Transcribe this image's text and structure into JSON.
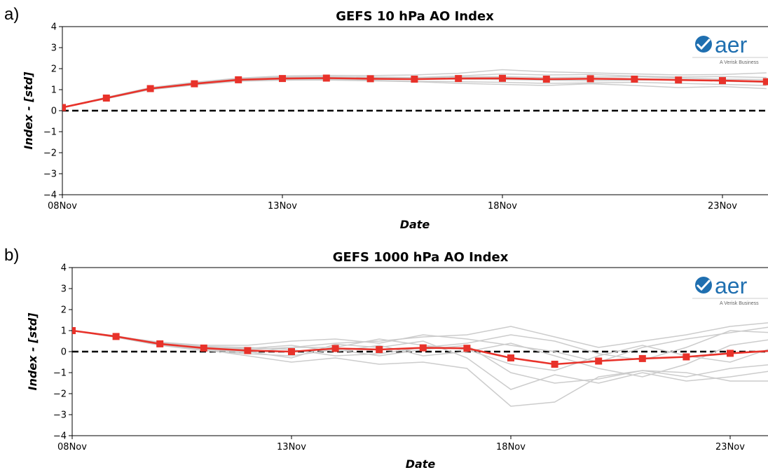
{
  "chart_data": [
    {
      "type": "line",
      "panel_label": "a)",
      "title": "GEFS 10 hPa AO Index",
      "xlabel": "Date",
      "ylabel": "Index - [std]",
      "x_range_days": [
        0,
        16.6
      ],
      "ylim": [
        -4,
        4
      ],
      "yticks": [
        -4,
        -3,
        -2,
        -1,
        0,
        1,
        2,
        3,
        4
      ],
      "ytick_labels": [
        "−4",
        "−3",
        "−2",
        "−1",
        "0",
        "1",
        "2",
        "3",
        "4"
      ],
      "xticks": [
        "08Nov",
        "13Nov",
        "18Nov",
        "23Nov"
      ],
      "zero_line": true,
      "series": [
        {
          "role": "ensemble_mean",
          "color": "#e8322a",
          "marker": "square",
          "x": [
            "08Nov",
            "09Nov",
            "10Nov",
            "11Nov",
            "12Nov",
            "13Nov",
            "14Nov",
            "15Nov",
            "16Nov",
            "17Nov",
            "18Nov",
            "19Nov",
            "20Nov",
            "21Nov",
            "22Nov",
            "23Nov",
            "24Nov"
          ],
          "values": [
            0.15,
            0.6,
            1.05,
            1.28,
            1.47,
            1.53,
            1.55,
            1.52,
            1.5,
            1.53,
            1.54,
            1.5,
            1.52,
            1.5,
            1.46,
            1.43,
            1.38
          ]
        },
        {
          "role": "ensemble_members",
          "color": "#cccccc",
          "members": [
            [
              0.15,
              0.62,
              1.08,
              1.32,
              1.52,
              1.6,
              1.62,
              1.6,
              1.58,
              1.65,
              1.75,
              1.7,
              1.72,
              1.65,
              1.6,
              1.62,
              1.58
            ],
            [
              0.15,
              0.58,
              1.02,
              1.25,
              1.43,
              1.48,
              1.5,
              1.45,
              1.4,
              1.38,
              1.35,
              1.3,
              1.32,
              1.35,
              1.3,
              1.25,
              1.2
            ],
            [
              0.15,
              0.64,
              1.1,
              1.35,
              1.55,
              1.65,
              1.68,
              1.67,
              1.7,
              1.78,
              1.95,
              1.85,
              1.8,
              1.75,
              1.7,
              1.72,
              1.8
            ],
            [
              0.15,
              0.57,
              1.0,
              1.22,
              1.4,
              1.45,
              1.46,
              1.42,
              1.38,
              1.3,
              1.25,
              1.2,
              1.28,
              1.2,
              1.1,
              1.15,
              1.05
            ],
            [
              0.15,
              0.61,
              1.06,
              1.3,
              1.5,
              1.56,
              1.6,
              1.58,
              1.55,
              1.6,
              1.62,
              1.58,
              1.6,
              1.62,
              1.55,
              1.5,
              1.48
            ],
            [
              0.15,
              0.59,
              1.04,
              1.26,
              1.45,
              1.5,
              1.52,
              1.5,
              1.52,
              1.5,
              1.48,
              1.45,
              1.42,
              1.45,
              1.48,
              1.4,
              1.35
            ]
          ]
        }
      ]
    },
    {
      "type": "line",
      "panel_label": "b)",
      "title": "GEFS 1000 hPa AO Index",
      "xlabel": "Date",
      "ylabel": "Index - [std]",
      "x_range_days": [
        0,
        16.6
      ],
      "ylim": [
        -4,
        4
      ],
      "yticks": [
        -4,
        -3,
        -2,
        -1,
        0,
        1,
        2,
        3,
        4
      ],
      "ytick_labels": [
        "−4",
        "−3",
        "−2",
        "−1",
        "0",
        "1",
        "2",
        "3",
        "4"
      ],
      "xticks": [
        "08Nov",
        "13Nov",
        "18Nov",
        "23Nov"
      ],
      "zero_line": true,
      "series": [
        {
          "role": "ensemble_mean",
          "color": "#e8322a",
          "marker": "square",
          "x": [
            "08Nov",
            "09Nov",
            "10Nov",
            "11Nov",
            "12Nov",
            "13Nov",
            "14Nov",
            "15Nov",
            "16Nov",
            "17Nov",
            "18Nov",
            "19Nov",
            "20Nov",
            "21Nov",
            "22Nov",
            "23Nov",
            "24Nov"
          ],
          "values": [
            1.0,
            0.72,
            0.37,
            0.17,
            0.05,
            0.0,
            0.15,
            0.1,
            0.18,
            0.16,
            -0.3,
            -0.6,
            -0.45,
            -0.33,
            -0.25,
            -0.08,
            0.05
          ]
        },
        {
          "role": "ensemble_members",
          "color": "#cccccc",
          "members": [
            [
              1.0,
              0.75,
              0.4,
              0.2,
              0.1,
              0.2,
              0.4,
              0.5,
              0.7,
              0.8,
              1.2,
              0.7,
              0.2,
              0.5,
              0.8,
              1.2,
              1.4
            ],
            [
              1.0,
              0.7,
              0.3,
              0.1,
              -0.2,
              -0.5,
              -0.3,
              -0.6,
              -0.5,
              -0.8,
              -2.6,
              -2.4,
              -1.2,
              -0.9,
              -1.0,
              -1.4,
              -1.4
            ],
            [
              1.0,
              0.72,
              0.45,
              0.3,
              0.3,
              0.5,
              0.6,
              0.4,
              0.8,
              0.6,
              0.3,
              0.0,
              -0.5,
              0.2,
              0.6,
              0.9,
              1.2
            ],
            [
              1.0,
              0.68,
              0.3,
              0.05,
              -0.1,
              -0.2,
              0.1,
              -0.2,
              0.1,
              0.3,
              -1.0,
              -1.5,
              -1.3,
              -0.9,
              -1.2,
              -0.8,
              -0.6
            ],
            [
              1.0,
              0.74,
              0.35,
              0.2,
              0.15,
              0.3,
              0.0,
              0.3,
              -0.2,
              0.0,
              0.4,
              -0.2,
              -0.8,
              -1.2,
              -0.6,
              0.3,
              0.6
            ],
            [
              1.0,
              0.7,
              0.38,
              0.1,
              0.0,
              -0.3,
              0.35,
              0.2,
              0.5,
              -0.3,
              -1.8,
              -1.1,
              -1.5,
              -1.0,
              -1.4,
              -1.2,
              -0.9
            ],
            [
              1.0,
              0.73,
              0.42,
              0.25,
              0.2,
              0.1,
              -0.2,
              -0.1,
              0.2,
              0.4,
              0.8,
              0.5,
              -0.1,
              -0.4,
              0.2,
              1.0,
              0.9
            ],
            [
              1.0,
              0.71,
              0.33,
              0.12,
              -0.05,
              0.2,
              0.2,
              0.6,
              0.3,
              0.1,
              -0.6,
              -0.9,
              -0.2,
              0.3,
              -0.2,
              -0.5,
              0.2
            ]
          ]
        }
      ]
    }
  ],
  "logo": {
    "text": "aer",
    "subtext": "A Verisk Business"
  }
}
